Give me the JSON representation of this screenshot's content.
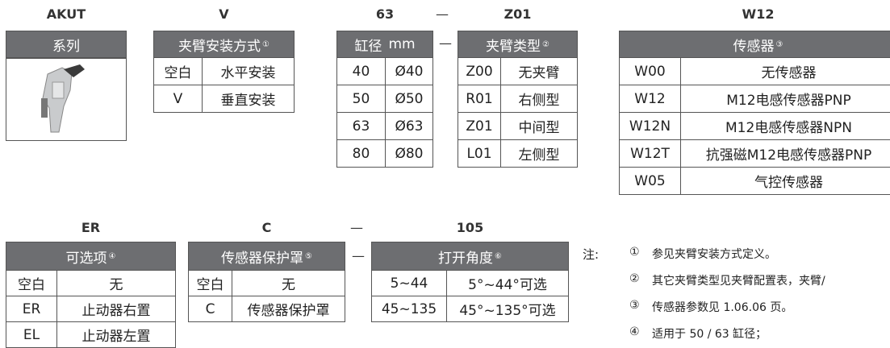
{
  "top": {
    "series": {
      "code": "AKUT",
      "header": "系列"
    },
    "mounting": {
      "code": "V",
      "header": "夹臂安装方式",
      "ref": "①",
      "rows": [
        [
          "空白",
          "水平安装"
        ],
        [
          "V",
          "垂直安装"
        ]
      ]
    },
    "bore": {
      "code": "63",
      "header": "缸径",
      "unit": "mm",
      "rows": [
        [
          "40",
          "Ø40"
        ],
        [
          "50",
          "Ø50"
        ],
        [
          "63",
          "Ø63"
        ],
        [
          "80",
          "Ø80"
        ]
      ]
    },
    "separator": "—",
    "arm": {
      "code": "Z01",
      "header": "夹臂类型",
      "ref": "②",
      "rows": [
        [
          "Z00",
          "无夹臂"
        ],
        [
          "R01",
          "右侧型"
        ],
        [
          "Z01",
          "中间型"
        ],
        [
          "L01",
          "左侧型"
        ]
      ]
    },
    "sensor": {
      "code": "W12",
      "header": "传感器",
      "ref": "③",
      "rows": [
        [
          "W00",
          "无传感器"
        ],
        [
          "W12",
          "M12电感传感器PNP"
        ],
        [
          "W12N",
          "M12电感传感器NPN"
        ],
        [
          "W12T",
          "抗强磁M12电感传感器PNP"
        ],
        [
          "W05",
          "气控传感器"
        ]
      ]
    }
  },
  "bottom": {
    "option": {
      "code": "ER",
      "header": "可选项",
      "ref": "④",
      "rows": [
        [
          "空白",
          "无"
        ],
        [
          "ER",
          "止动器右置"
        ],
        [
          "EL",
          "止动器左置"
        ]
      ]
    },
    "cover": {
      "code": "C",
      "header": "传感器保护罩",
      "ref": "⑤",
      "rows": [
        [
          "空白",
          "无"
        ],
        [
          "C",
          "传感器保护罩"
        ]
      ]
    },
    "separator": "—",
    "angle": {
      "code": "105",
      "header": "打开角度",
      "ref": "⑥",
      "rows": [
        [
          "5~44",
          "5°~44°可选"
        ],
        [
          "45~135",
          "45°~135°可选"
        ]
      ]
    }
  },
  "notes": {
    "label": "注:",
    "items": [
      {
        "ref": "①",
        "text": "参见夹臂安装方式定义。"
      },
      {
        "ref": "②",
        "text": "其它夹臂类型见夹臂配置表，夹臂/"
      },
      {
        "ref": "③",
        "text": "传感器参数见 1.06.06 页。"
      },
      {
        "ref": "④",
        "text": "适用于 50 / 63 缸径；"
      }
    ]
  }
}
